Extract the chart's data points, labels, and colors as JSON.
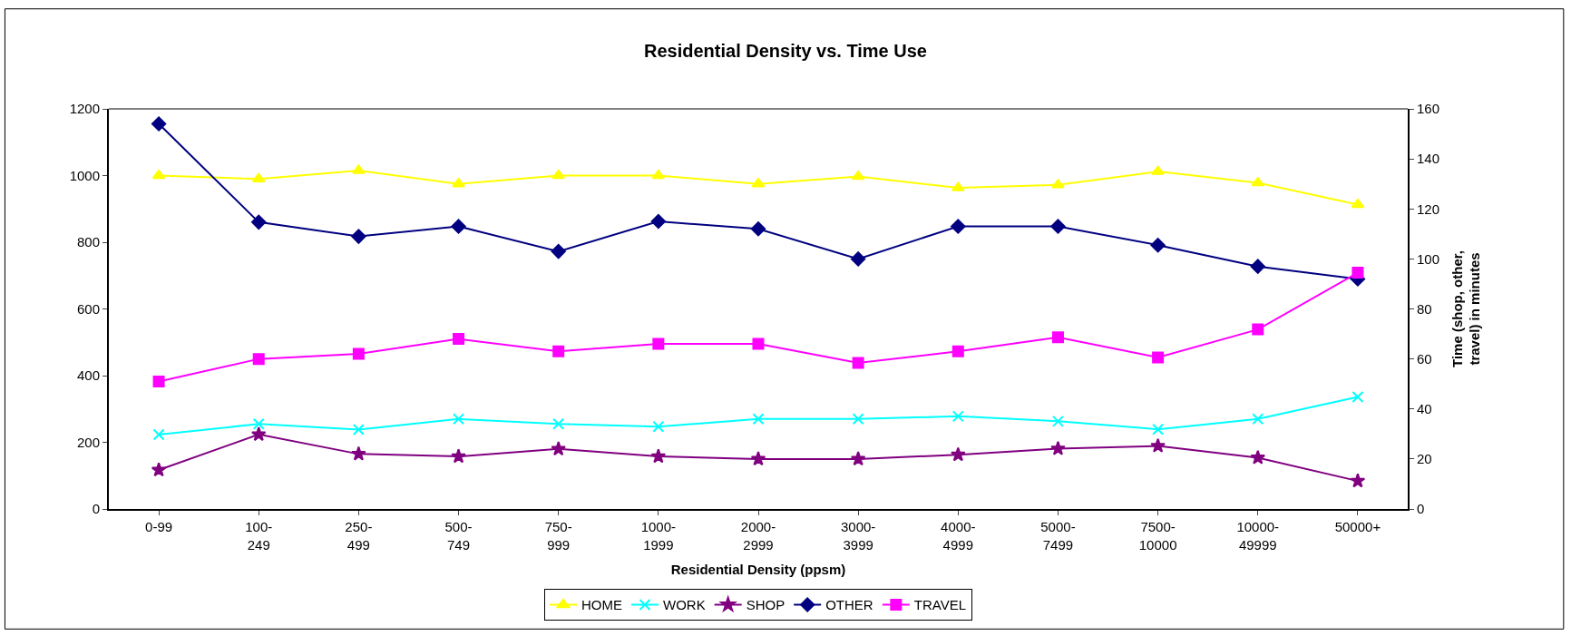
{
  "chart_data": {
    "type": "line",
    "title": "Residential Density vs. Time Use",
    "xlabel": "Residential Density (ppsm)",
    "y2label": "Time (shop, other, travel) in minutes",
    "categories": [
      "0-99",
      "100-249",
      "250-499",
      "500-749",
      "750-999",
      "1000-1999",
      "2000-2999",
      "3000-3999",
      "4000-4999",
      "5000-7499",
      "7500-10000",
      "10000-49999",
      "50000+"
    ],
    "series": [
      {
        "name": "HOME",
        "color": "#ffff00",
        "marker": "triangle",
        "values": [
          1000,
          990,
          1015,
          975,
          1000,
          1000,
          975,
          997,
          963,
          972,
          1012,
          978,
          913
        ]
      },
      {
        "name": "WORK",
        "color": "#00ffff",
        "marker": "cross",
        "values": [
          223,
          255,
          238,
          270,
          255,
          247,
          270,
          270,
          278,
          263,
          239,
          270,
          336
        ]
      },
      {
        "name": "SHOP",
        "color": "#800080",
        "marker": "star",
        "axis": "y2",
        "values": [
          15.6,
          29.8,
          22,
          21,
          24,
          21,
          20,
          20,
          21.7,
          24.1,
          25.2,
          20.5,
          11.2
        ]
      },
      {
        "name": "OTHER",
        "color": "#000080",
        "marker": "diamond",
        "axis": "y2",
        "values": [
          154,
          114.7,
          109,
          113,
          103,
          115,
          112,
          100,
          113,
          113,
          105.5,
          97,
          92
        ]
      },
      {
        "name": "TRAVEL",
        "color": "#ff00ff",
        "marker": "square",
        "axis": "y2",
        "values": [
          51,
          60,
          62,
          68,
          63,
          66,
          66,
          58.4,
          63,
          68.7,
          60.6,
          71.8,
          94.5
        ]
      }
    ],
    "ylim": [
      0,
      1200
    ],
    "yticks": [
      0,
      200,
      400,
      600,
      800,
      1000,
      1200
    ],
    "y2lim": [
      0,
      160
    ],
    "y2ticks": [
      0,
      20,
      40,
      60,
      80,
      100,
      120,
      140,
      160
    ],
    "legend": "bottom",
    "line_style": "solid"
  }
}
